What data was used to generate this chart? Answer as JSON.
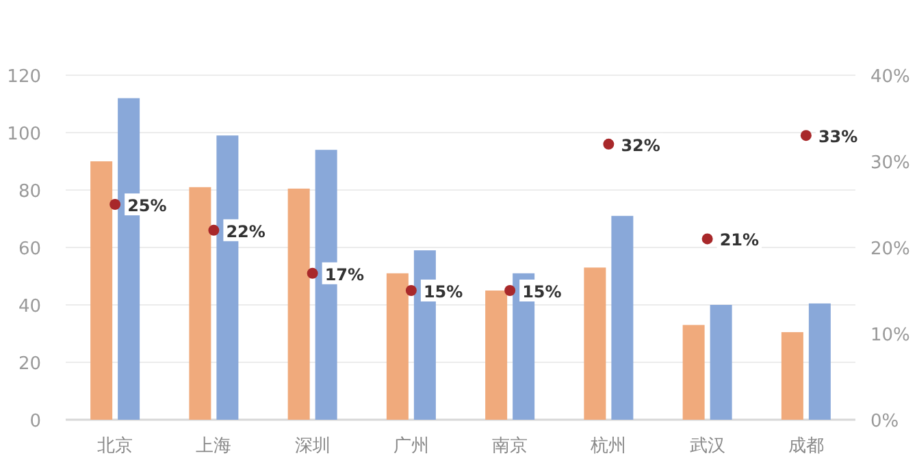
{
  "chart_data": {
    "type": "bar",
    "categories": [
      "北京",
      "上海",
      "深圳",
      "广州",
      "南京",
      "杭州",
      "武汉",
      "成都"
    ],
    "series": [
      {
        "color": "#f0aa7c",
        "values": [
          90,
          81,
          80.5,
          51,
          45,
          53,
          33,
          30.5
        ]
      },
      {
        "color": "#89a8d9",
        "values": [
          112,
          99,
          94,
          59,
          51,
          71,
          40,
          40.5
        ]
      },
      {
        "type": "scatter",
        "axis": "y2",
        "color": "#a8282a",
        "marker": "circle",
        "values": [
          25,
          22,
          17,
          15,
          15,
          32,
          21,
          33
        ],
        "value_labels": [
          "25%",
          "22%",
          "17%",
          "15%",
          "15%",
          "32%",
          "21%",
          "33%"
        ]
      }
    ],
    "ylim": [
      0,
      120
    ],
    "yticks": [
      0,
      20,
      40,
      60,
      80,
      100,
      120
    ],
    "y2lim": [
      0,
      40
    ],
    "y2ticks": [
      {
        "value": 0,
        "label": "0%"
      },
      {
        "value": 10,
        "label": "10%"
      },
      {
        "value": 20,
        "label": "20%"
      },
      {
        "value": 30,
        "label": "30%"
      },
      {
        "value": 40,
        "label": "40%"
      }
    ],
    "grid": "y"
  }
}
